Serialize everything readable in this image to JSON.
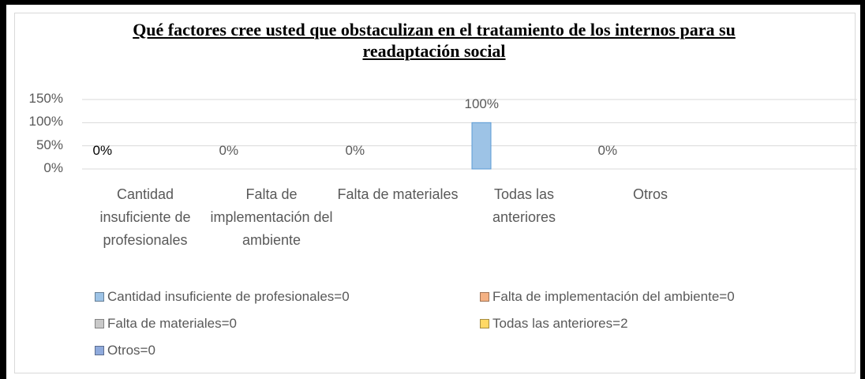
{
  "chart_data": {
    "type": "bar",
    "title": "Qué factores cree usted que obstaculizan en el tratamiento de los internos para su readaptación social",
    "categories": [
      "Cantidad insuficiente de profesionales",
      "Falta de implementación del ambiente",
      "Falta de materiales",
      "Todas las anteriores",
      "Otros"
    ],
    "values": [
      0,
      0,
      0,
      100,
      0
    ],
    "value_labels": [
      "0%",
      "0%",
      "0%",
      "100%",
      "0%"
    ],
    "color": "#9dc3e6",
    "ylim": [
      0,
      150
    ],
    "yticks": [
      {
        "value": 0,
        "label": "0%"
      },
      {
        "value": 50,
        "label": "50%"
      },
      {
        "value": 100,
        "label": "100%"
      },
      {
        "value": 150,
        "label": "150%"
      }
    ],
    "grid": true,
    "legend": [
      {
        "name": "Cantidad insuficiente de profesionales=0",
        "color": "#9dc3e6"
      },
      {
        "name": "Falta de implementación del ambiente=0",
        "color": "#f4b183"
      },
      {
        "name": "Falta de materiales=0",
        "color": "#c9c9c9"
      },
      {
        "name": "Todas las anteriores=2",
        "color": "#ffd966"
      },
      {
        "name": "Otros=0",
        "color": "#8faadc"
      }
    ]
  }
}
